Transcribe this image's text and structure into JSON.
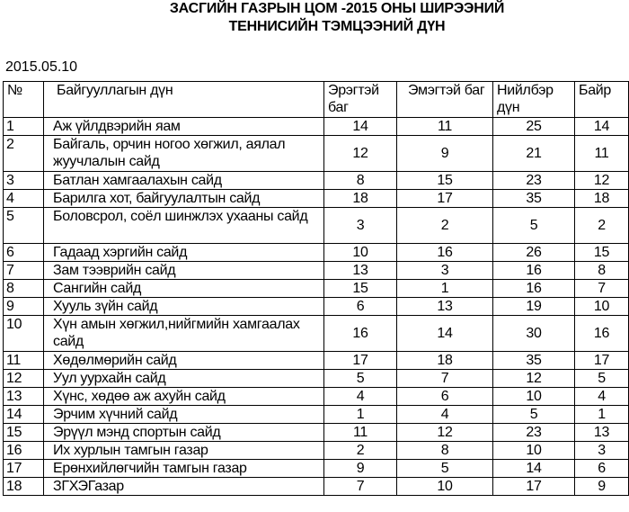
{
  "title_line1": "ЗАСГИЙН ГАЗРЫН  ЦОМ -2015 ОНЫ ШИРЭЭНИЙ",
  "title_line2": "ТЕННИСИЙН ТЭМЦЭЭНИЙ ДҮН",
  "date": "2015.05.10",
  "headers": [
    "№",
    "Байгууллагын дүн",
    "Эрэгтэй баг",
    "Эмэгтэй баг",
    "Нийлбэр дүн",
    "Байр"
  ],
  "rows": [
    {
      "no": "1",
      "name": "Аж үйлдвэрийн яам",
      "men": "14",
      "women": "11",
      "total": "25",
      "place": "14"
    },
    {
      "no": "2",
      "name": "Байгаль, орчин ногоо хөгжил, аялал жуучлалын сайд",
      "men": "12",
      "women": "9",
      "total": "21",
      "place": "11"
    },
    {
      "no": "3",
      "name": "Батлан хамгаалахын сайд",
      "men": "8",
      "women": "15",
      "total": "23",
      "place": "12"
    },
    {
      "no": "4",
      "name": "Барилга хот, байгуулалтын сайд",
      "men": "18",
      "women": "17",
      "total": "35",
      "place": "18"
    },
    {
      "no": "5",
      "name": "Боловсрол, соёл шинжлэх ухааны сайд",
      "men": "3",
      "women": "2",
      "total": "5",
      "place": "2"
    },
    {
      "no": "6",
      "name": "Гадаад хэргийн сайд",
      "men": "10",
      "women": "16",
      "total": "26",
      "place": "15"
    },
    {
      "no": "7",
      "name": "Зам тээврийн сайд",
      "men": "13",
      "women": "3",
      "total": "16",
      "place": "8"
    },
    {
      "no": "8",
      "name": "Сангийн сайд",
      "men": "15",
      "women": "1",
      "total": "16",
      "place": "7"
    },
    {
      "no": "9",
      "name": "Хууль зүйн сайд",
      "men": "6",
      "women": "13",
      "total": "19",
      "place": "10"
    },
    {
      "no": "10",
      "name": "Хүн амын хөгжил,нийгмийн хамгаалах сайд",
      "men": "16",
      "women": "14",
      "total": "30",
      "place": "16"
    },
    {
      "no": "11",
      "name": "Хөдөлмөрийн сайд",
      "men": "17",
      "women": "18",
      "total": "35",
      "place": "17"
    },
    {
      "no": "12",
      "name": "Уул уурхайн сайд",
      "men": "5",
      "women": "7",
      "total": "12",
      "place": "5"
    },
    {
      "no": "13",
      "name": "Хүнс, хөдөө аж ахуйн сайд",
      "men": "4",
      "women": "6",
      "total": "10",
      "place": "4"
    },
    {
      "no": "14",
      "name": "Эрчим хүчний сайд",
      "men": "1",
      "women": "4",
      "total": "5",
      "place": "1"
    },
    {
      "no": "15",
      "name": "Эрүүл мэнд спортын сайд",
      "men": "11",
      "women": "12",
      "total": "23",
      "place": "13"
    },
    {
      "no": "16",
      "name": "Их хурлын тамгын газар",
      "men": "2",
      "women": "8",
      "total": "10",
      "place": "3"
    },
    {
      "no": "17",
      "name": "Ерөнхийлөгчийн тамгын газар",
      "men": "9",
      "women": "5",
      "total": "14",
      "place": "6"
    },
    {
      "no": "18",
      "name": "ЗГХЭГазар",
      "men": "7",
      "women": "10",
      "total": "17",
      "place": "9"
    }
  ]
}
